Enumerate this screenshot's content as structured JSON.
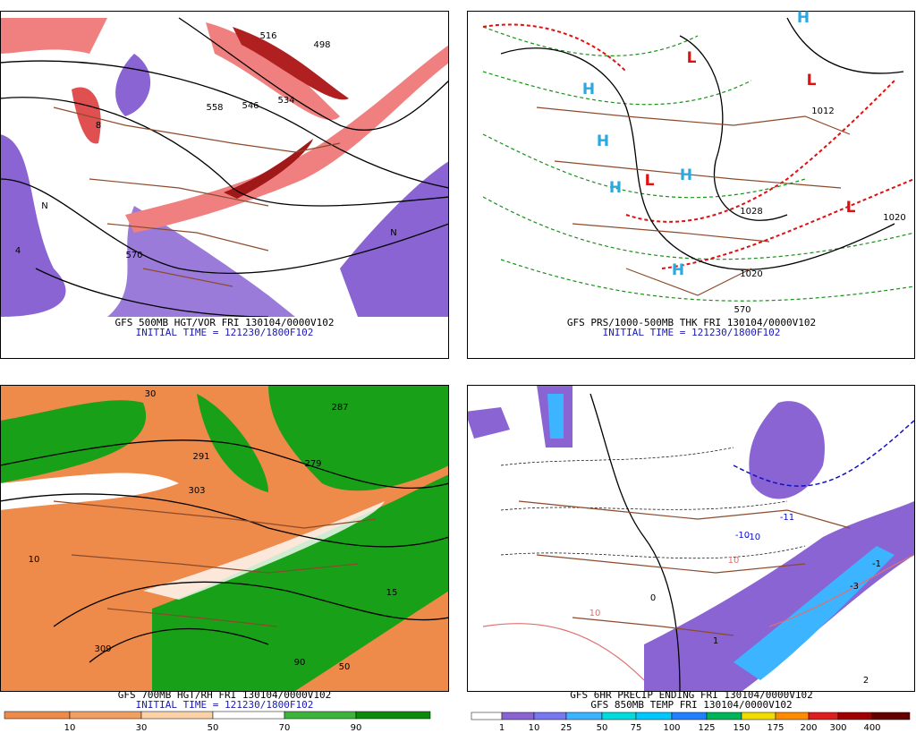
{
  "panels": [
    {
      "caption": "GFS 500MB HGT/VOR FRI 130104/0000V102",
      "subcaption": "INITIAL TIME = 121230/1800F102",
      "labels": [
        "558",
        "546",
        "534",
        "570",
        "498",
        "516",
        "8",
        "4",
        "N",
        "N"
      ]
    },
    {
      "caption": "GFS PRS/1000-500MB THK FRI 130104/0000V102",
      "subcaption": "INITIAL TIME = 121230/1800F102",
      "labels": [
        "H",
        "H",
        "H",
        "H",
        "H",
        "H",
        "L",
        "L",
        "L",
        "L",
        "1028",
        "1020",
        "1020",
        "1012",
        "570"
      ]
    },
    {
      "caption": "GFS 700MB HGT/RH FRI 130104/0000V102",
      "subcaption": "INITIAL TIME = 121230/1800F102",
      "labels": [
        "287",
        "279",
        "291",
        "303",
        "309",
        "15",
        "10",
        "90",
        "50",
        "30"
      ]
    },
    {
      "caption": "GFS 6HR PRECIP ENDING FRI 130104/0000V102",
      "subcaption": "GFS 850MB TEMP FRI 130104/0000V102",
      "labels": [
        "-10",
        "-11",
        "-10",
        "10",
        "10",
        "-1",
        "-3",
        "2",
        "1",
        "0"
      ]
    }
  ],
  "colorbars": [
    {
      "labels": [
        10,
        30,
        50,
        70,
        90
      ],
      "colors": [
        "#ee8a4a",
        "#f2a062",
        "#fbd2a8",
        "#ffffff",
        "#3cb43c",
        "#0c8a0c"
      ]
    },
    {
      "labels": [
        1,
        10,
        25,
        50,
        75,
        100,
        125,
        150,
        175,
        200,
        300,
        400
      ],
      "colors": [
        "#ffffff",
        "#8a64d2",
        "#7878f0",
        "#3cb4ff",
        "#00dcdc",
        "#00c8ff",
        "#2080ff",
        "#00b45a",
        "#f0dc00",
        "#ff8c00",
        "#dc1e1e",
        "#a00000",
        "#640000"
      ]
    }
  ]
}
